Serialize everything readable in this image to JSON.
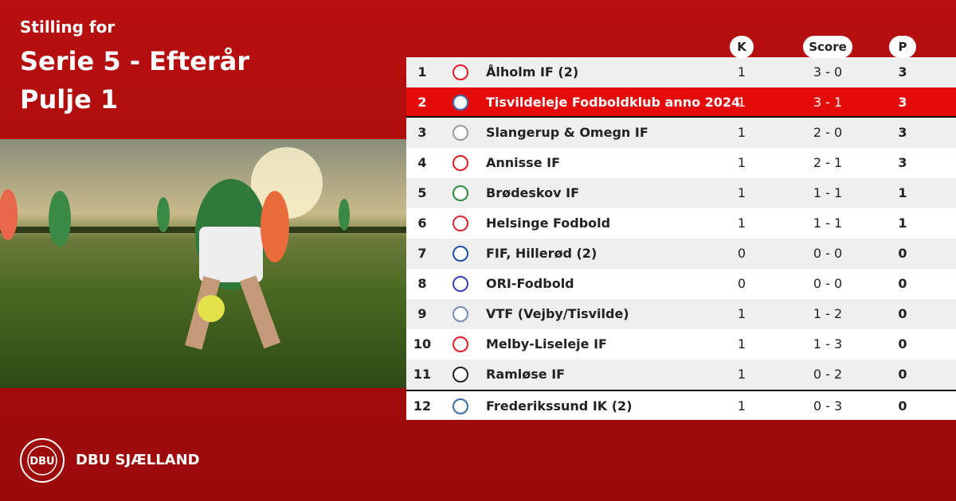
{
  "header": {
    "kicker": "Stilling for",
    "title": "Serie 5 - Efterår",
    "subtitle": "Pulje 1"
  },
  "table": {
    "columns": [
      "K",
      "Score",
      "P"
    ],
    "highlight_row": 1,
    "rows": [
      [
        "1",
        "Ålholm IF (2)",
        "1",
        "3 - 0",
        "3"
      ],
      [
        "2",
        "Tisvildeleje Fodboldklub anno 2024",
        "1",
        "3 - 1",
        "3"
      ],
      [
        "3",
        "Slangerup & Omegn IF",
        "1",
        "2 - 0",
        "3"
      ],
      [
        "4",
        "Annisse IF",
        "1",
        "2 - 1",
        "3"
      ],
      [
        "5",
        "Brødeskov IF",
        "1",
        "1 - 1",
        "1"
      ],
      [
        "6",
        "Helsinge Fodbold",
        "1",
        "1 - 1",
        "1"
      ],
      [
        "7",
        "FIF, Hillerød (2)",
        "0",
        "0 - 0",
        "0"
      ],
      [
        "8",
        "ORI-Fodbold",
        "0",
        "0 - 0",
        "0"
      ],
      [
        "9",
        "VTF (Vejby/Tisvilde)",
        "1",
        "1 - 2",
        "0"
      ],
      [
        "10",
        "Melby-Liseleje IF",
        "1",
        "1 - 3",
        "0"
      ],
      [
        "11",
        "Ramløse IF",
        "1",
        "0 - 2",
        "0"
      ],
      [
        "12",
        "Frederikssund IK (2)",
        "1",
        "0 - 3",
        "0"
      ]
    ]
  },
  "footer": {
    "logo": "DBU",
    "brand": "DBU SJÆLLAND"
  }
}
